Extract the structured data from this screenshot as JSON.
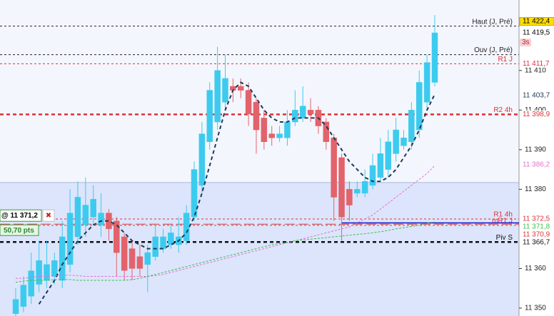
{
  "chart_data": {
    "type": "candlestick",
    "ylim": [
      11348.0,
      11427.8
    ],
    "yticks": [
      {
        "value": 11350,
        "label": "11 350"
      },
      {
        "value": 11360,
        "label": "11 360"
      },
      {
        "value": 11380,
        "label": "11 380"
      },
      {
        "value": 11390,
        "label": "11 390"
      },
      {
        "value": 11400,
        "label": "11 400"
      },
      {
        "value": 11410,
        "label": "11 410"
      }
    ],
    "up_color": "#3ccbef",
    "down_color": "#e2636b",
    "zones": [
      {
        "from": 11348.0,
        "to": 11381.7,
        "color": "#dce5fb"
      }
    ],
    "open": [
      11348.6,
      11350.4,
      11353,
      11356,
      11357,
      11358,
      11357,
      11361,
      11368,
      11371,
      11373,
      11371,
      11374,
      11372,
      11368,
      11365,
      11363,
      11361,
      11363,
      11365,
      11366,
      11366,
      11367,
      11373,
      11381,
      11392,
      11397,
      11402,
      11406,
      11406,
      11405,
      11402,
      11398,
      11394,
      11393,
      11393,
      11397,
      11398,
      11400,
      11400,
      11397,
      11393,
      11388,
      11380,
      11379,
      11379,
      11381,
      11383,
      11385,
      11389,
      11391,
      11392,
      11395,
      11402,
      11407
    ],
    "high": [
      11355,
      11358,
      11364,
      11367,
      11367,
      11364,
      11372,
      11380,
      11382,
      11383,
      11381,
      11379,
      11375,
      11373,
      11369,
      11367,
      11366,
      11366,
      11371,
      11370,
      11371,
      11373,
      11376,
      11387,
      11397,
      11407,
      11416,
      11414,
      11408,
      11408,
      11407,
      11403,
      11400,
      11396,
      11396,
      11400,
      11405,
      11406,
      11403,
      11401,
      11398,
      11394,
      11389,
      11382,
      11382,
      11385,
      11389,
      11393,
      11395,
      11398,
      11395,
      11402,
      11410,
      11414,
      11424
    ],
    "low": [
      11348,
      11349,
      11351,
      11354,
      11355,
      11356,
      11355,
      11359,
      11366,
      11368,
      11371,
      11368,
      11367,
      11358,
      11357,
      11357,
      11358,
      11354,
      11362,
      11364,
      11365,
      11364,
      11366,
      11372,
      11379,
      11390,
      11395,
      11400,
      11402,
      11403,
      11396,
      11389,
      11390,
      11391,
      11392,
      11391,
      11396,
      11397,
      11397,
      11394,
      11390,
      11372,
      11367,
      11372,
      11378,
      11378,
      11380,
      11382,
      11383,
      11387,
      11390,
      11390,
      11393,
      11400,
      11406
    ],
    "close": [
      11352.2,
      11355.8,
      11359.4,
      11362,
      11361,
      11362,
      11368,
      11374,
      11378,
      11376,
      11377.5,
      11374,
      11370,
      11364,
      11359.5,
      11360,
      11360,
      11364,
      11368,
      11368,
      11369,
      11368,
      11374,
      11385,
      11394,
      11405,
      11410,
      11408,
      11405,
      11405,
      11399,
      11395,
      11392,
      11393,
      11394,
      11397,
      11400,
      11401,
      11399,
      11396,
      11392,
      11378,
      11373,
      11376,
      11380,
      11382,
      11386,
      11389,
      11392,
      11395,
      11393,
      11400,
      11407,
      11412,
      11419.5
    ],
    "lines": [
      {
        "color": "#1b3a5c",
        "dash": "5,4",
        "width": 2,
        "values": [
          null,
          null,
          null,
          11351,
          11354,
          11357,
          11361,
          11364,
          11367,
          11369,
          11371,
          11372,
          11372,
          11371,
          11369,
          11367,
          11366,
          11365,
          11365,
          11365,
          11366,
          11367,
          11369,
          11373,
          11379,
          11386,
          11393,
          11400,
          11405,
          11407,
          11406,
          11403,
          11400,
          11398,
          11397,
          11397,
          11398,
          11398,
          11398,
          11398,
          11396,
          11393,
          11390,
          11387,
          11385,
          11383,
          11382,
          11382,
          11383,
          11385,
          11388,
          11391,
          11395,
          11400,
          11404
        ]
      },
      {
        "color": "#e86fd2",
        "dash": "3,2",
        "width": 1,
        "values": [
          11357.5,
          11357.5,
          11357.8,
          11358,
          11358,
          11358.2,
          11358.3,
          11358.3,
          11358.2,
          11358,
          11358,
          11358,
          11358,
          11358,
          11358,
          11358,
          11358,
          11358,
          11358.2,
          11358.5,
          11359,
          11359.5,
          11360,
          11360.5,
          11361,
          11361.5,
          11362,
          11362.5,
          11363,
          11363.5,
          11364,
          11364.5,
          11365,
          11365.5,
          11366,
          11366.5,
          11367,
          11367.5,
          11368,
          11368.5,
          11369,
          11369.5,
          11370,
          11370.5,
          11371.5,
          11372.5,
          11373.5,
          11375,
          11376.5,
          11378,
          11379.5,
          11381,
          11382.5,
          11384,
          11386
        ]
      },
      {
        "color": "#3cc04a",
        "dash": "3,2",
        "width": 1,
        "values": [
          11356.5,
          11356.8,
          11357,
          11357,
          11357,
          11357.2,
          11357.2,
          11357.2,
          11357,
          11357,
          11357,
          11357,
          11357,
          11357,
          11357,
          11357.2,
          11357.5,
          11358,
          11358.5,
          11359,
          11359.5,
          11360,
          11360.5,
          11361,
          11361.5,
          11362,
          11362.5,
          11363,
          11363.5,
          11364,
          11364.5,
          11365,
          11365.5,
          11366,
          11366.3,
          11366.6,
          11367,
          11367.2,
          11367.4,
          11367.6,
          11367.8,
          11368,
          11368.2,
          11368.4,
          11368.6,
          11368.8,
          11369,
          11369.3,
          11369.6,
          11370,
          11370.3,
          11370.6,
          11371,
          11371.4,
          11371.8
        ]
      }
    ],
    "levels": [
      {
        "label": "Haut (J, Pré)",
        "value": 11421.2,
        "color": "#222222",
        "width": 1,
        "dash": "3,3"
      },
      {
        "label": "Ouv (J, Pré)",
        "value": 11414.0,
        "color": "#222222",
        "width": 1,
        "dash": "3,3"
      },
      {
        "label": "R1 J",
        "value": 11411.7,
        "color": "#e0303a",
        "width": 1,
        "dash": "3,3"
      },
      {
        "label": "R2 4h",
        "value": 11398.9,
        "color": "#e0303a",
        "width": 2.5,
        "dash": "5,4"
      },
      {
        "label": "R1 4h",
        "value": 11372.5,
        "color": "#e0303a",
        "width": 1,
        "dash": "3,3"
      },
      {
        "label": "mR1 J",
        "value": 11370.9,
        "color": "#e0303a",
        "width": 1,
        "dash": "3,3"
      },
      {
        "label": "Piv S",
        "value": 11366.7,
        "color": "#111111",
        "width": 2.5,
        "dash": "5,4"
      }
    ],
    "price_labels": [
      {
        "value": 11422.4,
        "label": "11 422,4",
        "color": "#000000",
        "bg": "#ffde00"
      },
      {
        "value": 11419.5,
        "label": "11 419,5",
        "color": "#000000",
        "bg": "#ffffff"
      },
      {
        "value": 11411.7,
        "label": "11 411,7",
        "color": "#e0303a",
        "bg": "#ffffff"
      },
      {
        "value": 11403.7,
        "label": "11 403,7",
        "color": "#1b3a5c",
        "bg": "#ffffff"
      },
      {
        "value": 11398.9,
        "label": "11 398,9",
        "color": "#e0303a",
        "bg": "#ffffff"
      },
      {
        "value": 11386.2,
        "label": "11 386,2",
        "color": "#e86fd2",
        "bg": "#ffffff"
      },
      {
        "value": 11372.5,
        "label": "11 372,5",
        "color": "#e0303a",
        "bg": "#ffffff"
      },
      {
        "value": 11371.8,
        "label": "11 371,8",
        "color": "#3cc04a",
        "bg": "#ffffff"
      },
      {
        "value": 11370.9,
        "label": "11 370,9",
        "color": "#e0303a",
        "bg": "#ffffff"
      },
      {
        "value": 11366.7,
        "label": "11 366,7",
        "color": "#111111",
        "bg": "#ffffff"
      }
    ],
    "countdown": "3s",
    "position_line": {
      "value": 11371.5,
      "color": "#1010d0",
      "from_index": 42
    },
    "order": {
      "value": 11371.2,
      "label": "@ 11 371,2",
      "pts": "50,70 pts",
      "close_icon": "✖"
    }
  }
}
